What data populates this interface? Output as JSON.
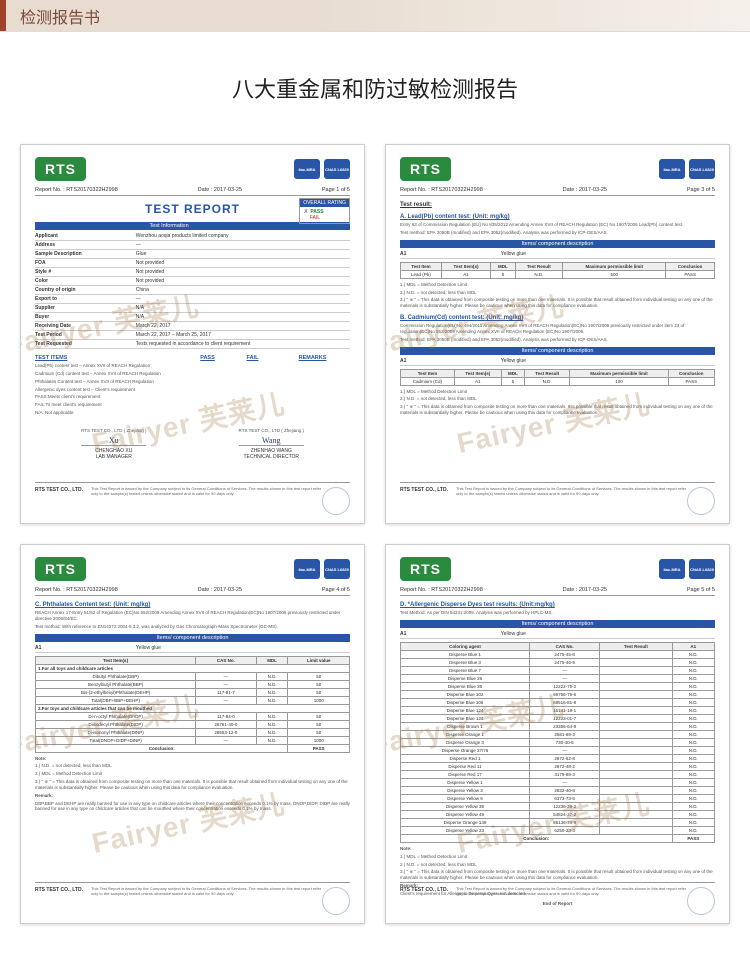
{
  "header": {
    "title": "检测报告书"
  },
  "main_title": "八大重金属和防过敏检测报告",
  "watermark": "Fairyer 芙莱儿",
  "shared": {
    "logo": "RTS",
    "badge_ilac": "ilac-MRA",
    "badge_cnas": "CNAS L6825",
    "report_no_label": "Report No. :",
    "report_no": "RTS20170322H2998",
    "date_label": "Date :",
    "date": "2017-03-25",
    "footer_company": "RTS TEST CO., LTD.",
    "footer_disclaimer": "This Test Report is issued by the Company subject to its General Conditions of Services. The results shown in this test report refer only to the sample(s) tested unless otherwise stated and is valid for 90 days only."
  },
  "page1": {
    "page_label": "Page 1 of 5",
    "heading": "TEST REPORT",
    "rating_title": "OVERALL RATING",
    "rating_pass": "PASS",
    "rating_fail": "FAIL",
    "rating_mark": "X",
    "section_info": "Test Information",
    "rows": [
      {
        "k": "Applicant",
        "v": "Wenzhou aoqia products limited company"
      },
      {
        "k": "Address",
        "v": "—"
      },
      {
        "k": "Sample Description",
        "v": "Glue"
      },
      {
        "k": "FOA",
        "v": "Not provided"
      },
      {
        "k": "Style #",
        "v": "Not provided"
      },
      {
        "k": "Color",
        "v": "Not provided"
      },
      {
        "k": "Country of origin",
        "v": "China"
      },
      {
        "k": "Export to",
        "v": "—"
      },
      {
        "k": "Supplier",
        "v": "N/A"
      },
      {
        "k": "Buyer",
        "v": "N/A"
      },
      {
        "k": "Receiving Date",
        "v": "March 22, 2017"
      },
      {
        "k": "Test Period",
        "v": "March 22, 2017 – March 25, 2017"
      },
      {
        "k": "Test Requested",
        "v": "Tests requested in accordance to client requirement"
      }
    ],
    "ti_heading": {
      "a": "TEST ITEMS",
      "b": "PASS",
      "c": "FAIL",
      "d": "REMARKS"
    },
    "test_items": [
      "Lead(Pb) content test – Annex XVII of REACH Regulation",
      "Cadmium (Cd) content test – Annex XVII of REACH Regulation",
      "Phthalates Content test – Annex XVII of REACH Regulation",
      "Allergenic dyes content test – Client's requirement"
    ],
    "pass_note": "PASS:Meets client's requirement",
    "fail_note": "FAIL:To meet client's requirement",
    "na_note": "N/A: Not applicable",
    "sig1_cap": "RTS TEST CO., LTD ( Zhejiang )",
    "sig1_name": "CHENGHAO XU",
    "sig1_role": "LAB MANAGER",
    "sig2_cap": "RTS TEST CO., LTD ( Zhejiang )",
    "sig2_name": "ZHENHAO WANG",
    "sig2_role": "TECHNICAL DIRECTOR"
  },
  "page3": {
    "page_label": "Page 3 of 5",
    "heading": "Test result:",
    "sectA_title": "A. Lead(Pb) content test: (Unit: mg/kg)",
    "sectA_desc": "Entry 63 of Commission Regulation (EU) No 835/2012 Amending Annex XVII of REACH Regulation (EC) No 1907/2006 Lead(Pb) content test.",
    "method": "Test method: EPA 3050B (modified) and EPA 3052(modified). Analysis was performed by ICP-OES/AAS.",
    "comp_bar": "Items/ component description",
    "comp_row": {
      "no": "A1",
      "desc": "Yellow glue"
    },
    "tblA_head": [
      "Test Item",
      "Test Item(s)",
      "MDL",
      "Test Result",
      "Maximum permissible limit",
      "Conclusion"
    ],
    "tblA_row": [
      "Lead (Pb)",
      "A1",
      "5",
      "N.D.",
      "500",
      "PASS"
    ],
    "notes": [
      "1.) MDL = Method Detection Limit",
      "2.) N.D. = not detected, less than MDL",
      "3.) \" ※ \" = This data is obtained from composite testing on more than one materials. It is possible that result obtained from individual testing on any one of the materials is substantially higher. Please be cautious when using this data for compliance evaluation."
    ],
    "sectB_title": "B. Cadmium(Cd) content test: (Unit: mg/kg)",
    "sectB_desc": "Commission Regulation(EU)No 494/2011 Amending Annex XVII of REACH Regulation(EC)No 1907/2006 previously restricted under item 23 of regulation(EC)No 552/2009 Amending Annex XVII of REACH Regulation (EC)No 1907/2006.",
    "tblB_row": [
      "Cadmium (Cd)",
      "A1",
      "5",
      "N.D.",
      "100",
      "PASS"
    ]
  },
  "page4": {
    "page_label": "Page 4 of 5",
    "sect_title": "C. Phthalates Content test: (Unit: mg/kg)",
    "sect_desc": "REACH Annex 17-Entry 51/52 of Regulation (EC)No 552/2009 Amending Annex XVII of REACH Regulation(EC)No 1907/2006 previously restricted under directive 2005/84/EC.",
    "method": "Test method: With reference to EN14372:2004-5.3.2, was analyzed by Gas Chromatograph-Mass Spectrometer (GC-MS).",
    "comp_bar": "Items/ component description",
    "comp_row": {
      "no": "A1",
      "desc": "Yellow glue"
    },
    "head": [
      "Test Item(s)",
      "CAS No.",
      "MDL",
      "Limit value"
    ],
    "group1_title": "1.For all toys and childcare articles",
    "group1": [
      [
        "Dibutyl Phthalate(DBP)",
        "—",
        "N.D.",
        "50"
      ],
      [
        "Benzylbutyl Phthalate(BBP)",
        "—",
        "N.D.",
        "50"
      ],
      [
        "Bis-(2-ethylhexyl)Phthalate(DEHP)",
        "117-81-7",
        "N.D.",
        "50"
      ],
      [
        "Total(DBP+BBP+DEHP)",
        "—",
        "N.D.",
        "1000"
      ]
    ],
    "group2_title": "2.For toys and childcare articles that can be mouthed",
    "group2": [
      [
        "Di-n-octyl Phthalate(DnOP)",
        "117-84-0",
        "N.D.",
        "50"
      ],
      [
        "Diisodecyl Phthalate(DIDP)",
        "26761-40-0",
        "N.D.",
        "50"
      ],
      [
        "Di-isononyl Phthalate(DINP)",
        "28553-12-0",
        "N.D.",
        "50"
      ],
      [
        "Total(DNOP+DIDP+DINP)",
        "—",
        "N.D.",
        "1000"
      ]
    ],
    "conclusion_label": "Conclusion:",
    "conclusion_val": "PASS",
    "notes_title": "Note:",
    "notes": [
      "1.) N.D. = not detected, less than MDL",
      "2.) MDL = Method Detection Limit",
      "3.) \" ※ \" = This data is obtained from composite testing on more than one materials. It is possible that result obtained from individual testing on any one of the materials is substantially higher. Please be cautious when using this data for compliance evaluation."
    ],
    "remark_title": "Remark:",
    "remark": "DBP,BBP and DEHP are really banned for use in any type on childcare articles where their concentration exceeds 0.1% by mass. DNOP,DIDP, DIDP are really banned for use in any type on childcare articles that can be mouthed where their concentration exceeds 0.1% by mass."
  },
  "page5": {
    "page_label": "Page 5 of 5",
    "sect_title": "D. *Allergenic Disperse Dyes test results:  (Unit:mg/kg)",
    "method": "Test Method: As per DIN 54231:2005. Analysis was performed by HPLC-MS.",
    "comp_bar": "Items/ component description",
    "comp_row": {
      "no": "A1",
      "desc": "Yellow glue"
    },
    "head": [
      "Coloring agent",
      "CAS No.",
      "Test Result",
      "A1"
    ],
    "rows": [
      [
        "Disperse Blue 1",
        "2475-45-8",
        "",
        "N.D."
      ],
      [
        "Disperse Blue 3",
        "2475-46-9",
        "",
        "N.D."
      ],
      [
        "Disperse Blue 7",
        "—",
        "",
        "N.D."
      ],
      [
        "Disperse Blue 26",
        "—",
        "",
        "N.D."
      ],
      [
        "Disperse Blue 35",
        "12222-75-2",
        "",
        "N.D."
      ],
      [
        "Disperse Blue 102",
        "69766-79-6",
        "",
        "N.D."
      ],
      [
        "Disperse Blue 106",
        "68516-81-8",
        "",
        "N.D."
      ],
      [
        "Disperse Blue 124",
        "15141-18-1",
        "",
        "N.D."
      ],
      [
        "Disperse Blue 124",
        "12223-01-7",
        "",
        "N.D."
      ],
      [
        "Disperse Brown 1",
        "23355-64-8",
        "",
        "N.D."
      ],
      [
        "Disperse Orange 1",
        "2581-69-3",
        "",
        "N.D."
      ],
      [
        "Disperse Orange 3",
        "730-40-5",
        "",
        "N.D."
      ],
      [
        "Disperse Orange 37/76",
        "—",
        "",
        "N.D."
      ],
      [
        "Disperse Red 1",
        "2872-52-8",
        "",
        "N.D."
      ],
      [
        "Disperse Red 11",
        "2872-48-2",
        "",
        "N.D."
      ],
      [
        "Disperse Red 17",
        "3179-89-3",
        "",
        "N.D."
      ],
      [
        "Disperse Yellow 1",
        "—",
        "",
        "N.D."
      ],
      [
        "Disperse Yellow 3",
        "2832-40-8",
        "",
        "N.D."
      ],
      [
        "Disperse Yellow 9",
        "6373-73-5",
        "",
        "N.D."
      ],
      [
        "Disperse Yellow 39",
        "12236-29-2",
        "",
        "N.D."
      ],
      [
        "Disperse Yellow 49",
        "54824-37-2",
        "",
        "N.D."
      ],
      [
        "Disperse Orange 149",
        "85136-74-9",
        "",
        "N.D."
      ],
      [
        "Disperse Yellow 23",
        "6250-23-3",
        "",
        "N.D."
      ]
    ],
    "conclusion_label": "Conclusion:",
    "conclusion_val": "PASS",
    "notes_title": "Note:",
    "notes": [
      "1.) MDL = Method Detection Limit",
      "2.) N.D. = not detected, less than MDL",
      "3.) \" ※ \" = This data is obtained from composite testing on more than one materials. It is possible that result obtained from individual testing on any one of the materials is substantially higher. Please be cautious when using this data for compliance evaluation."
    ],
    "remark_title": "Remark:",
    "remark": "Client's requirement for Allergenic Disperse Dyes: not detected.",
    "end": "End of Report"
  },
  "colors": {
    "accent": "#a0422a",
    "header_bg": "#e8dcd0",
    "logo_green": "#2a8a3e",
    "brand_blue": "#2855a5",
    "watermark": "rgba(160,120,70,0.28)"
  }
}
